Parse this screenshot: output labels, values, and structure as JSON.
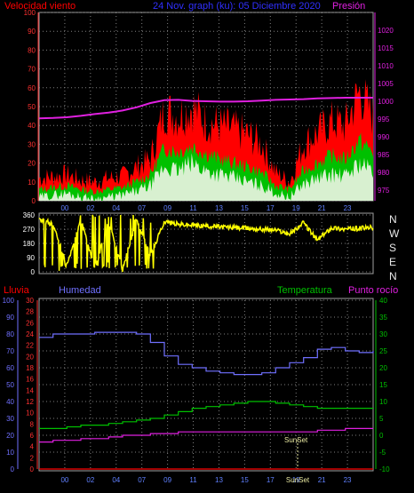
{
  "header": {
    "wind_label": "Velocidad viento",
    "date_range": "24 Nov. graph (ku): 05 Diciembre 2020",
    "pressure_label": "Presión"
  },
  "bottom_header": {
    "rain_label": "Lluvia",
    "humidity_label": "Humedad",
    "temperature_label": "Temperatura",
    "dewpoint_label": "Punto rocío"
  },
  "sunset_label": "SunSet",
  "colors": {
    "wind": "#ff0000",
    "wind_avg": "#00c000",
    "wind_low": "#d8f0d0",
    "pressure": "#e020e0",
    "direction": "#ffff00",
    "humidity": "#7070ff",
    "temperature": "#00c000",
    "dewpoint": "#e020e0",
    "rain": "#ff0000",
    "grid": "#808080"
  },
  "chart_data": [
    {
      "type": "area",
      "name": "wind",
      "x_ticks": [
        "00",
        "02",
        "04",
        "07",
        "09",
        "11",
        "13",
        "15",
        "17",
        "19",
        "21",
        "23"
      ],
      "y_ticks_left": [
        0,
        10,
        20,
        30,
        40,
        50,
        60,
        70,
        80,
        90,
        100
      ],
      "y_ticks_right": [
        975,
        980,
        985,
        990,
        995,
        1000,
        1005,
        1010,
        1015,
        1020
      ],
      "ylim": [
        0,
        100
      ],
      "y2lim": [
        972,
        1025
      ],
      "x": [
        0,
        1,
        2,
        3,
        4,
        5,
        6,
        7,
        8,
        9,
        10,
        11,
        12,
        13,
        14,
        15,
        16,
        17,
        18,
        19,
        20,
        21,
        22,
        23,
        24
      ],
      "series": [
        {
          "name": "gust",
          "values": [
            12,
            13,
            14,
            11,
            10,
            12,
            13,
            18,
            22,
            48,
            45,
            50,
            42,
            40,
            38,
            35,
            30,
            15,
            10,
            30,
            36,
            42,
            40,
            58,
            45
          ]
        },
        {
          "name": "avg",
          "values": [
            6,
            7,
            8,
            6,
            5,
            6,
            7,
            10,
            14,
            28,
            26,
            29,
            25,
            22,
            20,
            18,
            15,
            8,
            6,
            16,
            20,
            24,
            22,
            32,
            26
          ]
        },
        {
          "name": "low",
          "values": [
            2,
            3,
            4,
            2,
            1,
            2,
            3,
            5,
            8,
            18,
            16,
            20,
            16,
            14,
            12,
            10,
            8,
            4,
            2,
            9,
            12,
            14,
            13,
            20,
            16
          ]
        },
        {
          "name": "pressure",
          "values": [
            995.2,
            995.3,
            995.5,
            995.9,
            996.4,
            996.8,
            997.4,
            998.3,
            999.5,
            1000.3,
            1000.4,
            1000.1,
            1000.0,
            999.9,
            999.9,
            1000.0,
            1000.2,
            1000.4,
            1000.5,
            1000.6,
            1000.8,
            1000.9,
            1001.0,
            1001.0,
            1001.0
          ]
        }
      ]
    },
    {
      "type": "line",
      "name": "wind direction",
      "x_ticks": [
        "00",
        "02",
        "04",
        "07",
        "09",
        "11",
        "13",
        "15",
        "17",
        "19",
        "21",
        "23"
      ],
      "y_ticks_left": [
        0,
        90,
        180,
        270,
        360
      ],
      "direction_labels": [
        "N",
        "W",
        "S",
        "E",
        "N"
      ],
      "ylim": [
        0,
        360
      ],
      "x": [
        0,
        1,
        2,
        3,
        4,
        5,
        6,
        7,
        8,
        9,
        10,
        11,
        12,
        13,
        14,
        15,
        16,
        17,
        18,
        19,
        20,
        21,
        22,
        23,
        24
      ],
      "values": [
        330,
        300,
        40,
        330,
        20,
        320,
        15,
        330,
        100,
        320,
        300,
        295,
        290,
        285,
        280,
        275,
        270,
        265,
        240,
        310,
        200,
        280,
        270,
        275,
        280
      ]
    },
    {
      "type": "line",
      "name": "humidity temperature dewpoint rain",
      "x_ticks": [
        "00",
        "02",
        "04",
        "07",
        "09",
        "11",
        "13",
        "15",
        "17",
        "19",
        "SunSet",
        "21",
        "23"
      ],
      "y_ticks_humidity": [
        0,
        10,
        20,
        30,
        40,
        50,
        60,
        70,
        80,
        90,
        100
      ],
      "y_ticks_rain": [
        0,
        2,
        4,
        6,
        8,
        10,
        12,
        14,
        16,
        18,
        20,
        22,
        24,
        26,
        28,
        30
      ],
      "y_ticks_temp": [
        -10,
        -5,
        0,
        5,
        10,
        15,
        20,
        25,
        30,
        35,
        40
      ],
      "x": [
        0,
        1,
        2,
        3,
        4,
        5,
        6,
        7,
        8,
        9,
        10,
        11,
        12,
        13,
        14,
        15,
        16,
        17,
        18,
        19,
        20,
        21,
        22,
        23,
        24
      ],
      "series": [
        {
          "name": "Humedad",
          "values": [
            78,
            80,
            80,
            80,
            81,
            81,
            81,
            80,
            75,
            67,
            62,
            60,
            58,
            57,
            56,
            56,
            57,
            60,
            63,
            66,
            71,
            72,
            70,
            69,
            70
          ]
        },
        {
          "name": "Temperatura",
          "values": [
            2,
            2,
            2.5,
            3,
            3,
            3.5,
            4,
            4.5,
            5,
            6,
            7,
            8,
            8.5,
            9,
            9.5,
            10,
            10,
            9.5,
            9,
            8.5,
            8,
            8,
            8,
            8,
            8
          ]
        },
        {
          "name": "Punto rocío",
          "values": [
            -2,
            -1.5,
            -1.5,
            -1,
            -1,
            -0.5,
            0,
            0,
            0.5,
            0.5,
            1,
            1,
            1,
            1,
            1,
            1,
            1,
            1,
            1,
            1,
            1.5,
            1.5,
            2,
            2,
            2
          ]
        },
        {
          "name": "Lluvia",
          "values": [
            0,
            0,
            0,
            0,
            0,
            0,
            0,
            0,
            0,
            0,
            0,
            0,
            0,
            0,
            0,
            0,
            0,
            0,
            0,
            0,
            0,
            0,
            0,
            0,
            0
          ]
        }
      ],
      "ylim_humidity": [
        0,
        100
      ],
      "ylim_temp": [
        -10,
        40
      ],
      "ylim_rain": [
        0,
        30
      ],
      "annotation": "SunSet"
    }
  ]
}
